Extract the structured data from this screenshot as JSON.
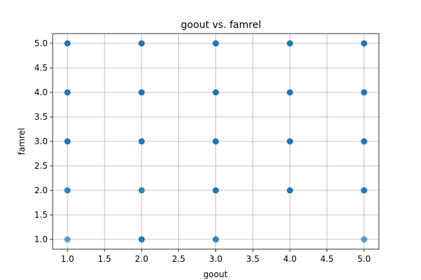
{
  "chart_data": {
    "type": "scatter",
    "title": "goout vs. famrel",
    "xlabel": "goout",
    "ylabel": "famrel",
    "xlim": [
      0.8,
      5.2
    ],
    "ylim": [
      0.8,
      5.2
    ],
    "xticks": [
      "1.0",
      "1.5",
      "2.0",
      "2.5",
      "3.0",
      "3.5",
      "4.0",
      "4.5",
      "5.0"
    ],
    "yticks": [
      "1.0",
      "1.5",
      "2.0",
      "2.5",
      "3.0",
      "3.5",
      "4.0",
      "4.5",
      "5.0"
    ],
    "grid": true,
    "color": "#1f77b4",
    "points": [
      {
        "x": 1,
        "y": 1,
        "opacity": 0.7
      },
      {
        "x": 1,
        "y": 2,
        "opacity": 0.9
      },
      {
        "x": 1,
        "y": 3,
        "opacity": 1
      },
      {
        "x": 1,
        "y": 4,
        "opacity": 1
      },
      {
        "x": 1,
        "y": 5,
        "opacity": 1
      },
      {
        "x": 2,
        "y": 1,
        "opacity": 1
      },
      {
        "x": 2,
        "y": 2,
        "opacity": 0.9
      },
      {
        "x": 2,
        "y": 3,
        "opacity": 1
      },
      {
        "x": 2,
        "y": 4,
        "opacity": 1
      },
      {
        "x": 2,
        "y": 5,
        "opacity": 1
      },
      {
        "x": 3,
        "y": 1,
        "opacity": 0.9
      },
      {
        "x": 3,
        "y": 2,
        "opacity": 1
      },
      {
        "x": 3,
        "y": 3,
        "opacity": 1
      },
      {
        "x": 3,
        "y": 4,
        "opacity": 1
      },
      {
        "x": 3,
        "y": 5,
        "opacity": 1
      },
      {
        "x": 4,
        "y": 2,
        "opacity": 1
      },
      {
        "x": 4,
        "y": 3,
        "opacity": 1
      },
      {
        "x": 4,
        "y": 4,
        "opacity": 1
      },
      {
        "x": 4,
        "y": 5,
        "opacity": 1
      },
      {
        "x": 5,
        "y": 1,
        "opacity": 0.7
      },
      {
        "x": 5,
        "y": 2,
        "opacity": 1
      },
      {
        "x": 5,
        "y": 3,
        "opacity": 1
      },
      {
        "x": 5,
        "y": 4,
        "opacity": 1
      },
      {
        "x": 5,
        "y": 5,
        "opacity": 1
      }
    ]
  }
}
